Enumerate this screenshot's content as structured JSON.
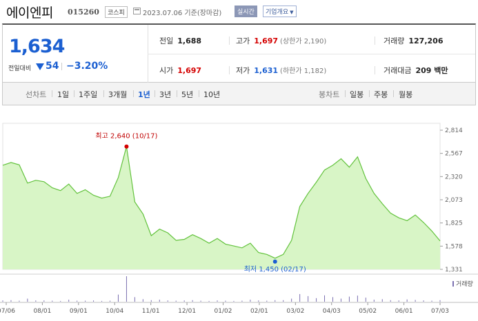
{
  "header": {
    "company": "에이엔피",
    "code": "015260",
    "market": "코스피",
    "date": "2023.07.06 기준(장마감)",
    "realtime": "실시간",
    "info": "기업개요"
  },
  "price": {
    "current": "1,634",
    "change_label": "전일대비",
    "change": "54",
    "change_pct": "−3.20%",
    "prev_label": "전일",
    "prev": "1,688",
    "high_label": "고가",
    "high": "1,697",
    "upper_limit": "(상한가 2,190)",
    "volume_label": "거래량",
    "volume": "127,206",
    "open_label": "시가",
    "open": "1,697",
    "low_label": "저가",
    "low": "1,631",
    "lower_limit": "(하한가 1,182)",
    "amount_label": "거래대금",
    "amount": "209 백만"
  },
  "periods": {
    "line_label": "선차트",
    "line": [
      "1일",
      "1주일",
      "3개월",
      "1년",
      "3년",
      "5년",
      "10년"
    ],
    "selected": "1년",
    "candle_label": "봉차트",
    "candle": [
      "일봉",
      "주봉",
      "월봉"
    ]
  },
  "colors": {
    "up": "#d40000",
    "down": "#1b5fd1",
    "line": "#62c23c",
    "area": "#d8f5c6",
    "volume": "#7a6fb0"
  },
  "chart_data": {
    "type": "area",
    "x": [
      "07/06",
      "07/13",
      "07/20",
      "07/27",
      "08/03",
      "08/10",
      "08/17",
      "08/24",
      "08/31",
      "09/07",
      "09/14",
      "09/21",
      "09/28",
      "10/05",
      "10/12",
      "10/17",
      "10/24",
      "10/31",
      "11/07",
      "11/14",
      "11/21",
      "11/28",
      "12/05",
      "12/12",
      "12/19",
      "12/26",
      "01/02",
      "01/09",
      "01/16",
      "01/23",
      "01/30",
      "02/06",
      "02/13",
      "02/17",
      "02/24",
      "03/03",
      "03/10",
      "03/17",
      "03/24",
      "03/31",
      "04/07",
      "04/14",
      "04/21",
      "04/28",
      "05/05",
      "05/12",
      "05/19",
      "05/26",
      "06/02",
      "06/09",
      "06/16",
      "06/23",
      "06/30",
      "07/06"
    ],
    "values": [
      2440,
      2470,
      2445,
      2250,
      2280,
      2265,
      2200,
      2170,
      2240,
      2140,
      2180,
      2120,
      2090,
      2110,
      2310,
      2640,
      2050,
      1920,
      1690,
      1760,
      1720,
      1640,
      1650,
      1700,
      1660,
      1610,
      1660,
      1600,
      1580,
      1560,
      1610,
      1510,
      1490,
      1450,
      1490,
      1640,
      2000,
      2140,
      2260,
      2390,
      2440,
      2510,
      2420,
      2530,
      2300,
      2140,
      2030,
      1930,
      1880,
      1850,
      1910,
      1830,
      1740,
      1634
    ],
    "high_annotation": "최고 2,640 (10/17)",
    "low_annotation": "최저 1,450 (02/17)",
    "y_ticks": [
      "2,814",
      "2,567",
      "2,320",
      "2,073",
      "1,825",
      "1,578",
      "1,331"
    ],
    "ylim": [
      1331,
      2814
    ],
    "x_ticks": [
      "07/06",
      "08/01",
      "09/01",
      "10/04",
      "11/01",
      "12/01",
      "01/02",
      "02/01",
      "03/02",
      "04/03",
      "05/02",
      "06/01",
      "07/03"
    ],
    "volume_label": "거래량",
    "volume": [
      5,
      6,
      4,
      12,
      5,
      5,
      4,
      3,
      8,
      4,
      4,
      5,
      3,
      4,
      28,
      100,
      18,
      10,
      6,
      8,
      5,
      4,
      5,
      6,
      4,
      3,
      5,
      4,
      3,
      4,
      8,
      5,
      4,
      6,
      6,
      12,
      30,
      22,
      14,
      25,
      18,
      12,
      20,
      24,
      16,
      8,
      10,
      6,
      5,
      9,
      7,
      5,
      4,
      6
    ]
  }
}
